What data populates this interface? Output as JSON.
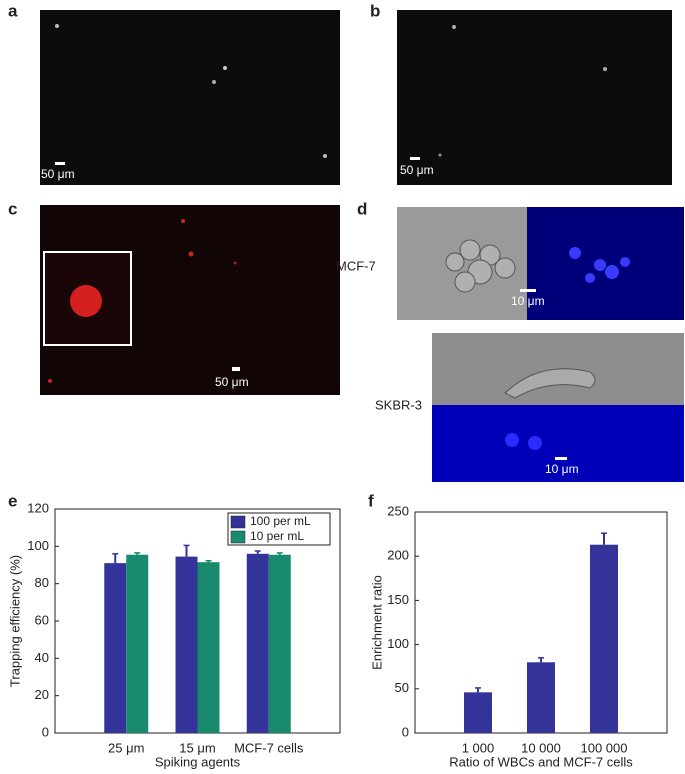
{
  "panels": {
    "a": {
      "label": "a",
      "scale": "50 μm"
    },
    "b": {
      "label": "b",
      "scale": "50 μm"
    },
    "c": {
      "label": "c",
      "scale": "50 μm"
    },
    "d": {
      "label": "d",
      "top_label": "MCF-7",
      "top_scale": "10 μm",
      "bottom_label": "SKBR-3",
      "bottom_scale": "10 μm"
    }
  },
  "chart_data": [
    {
      "type": "bar",
      "panel": "e",
      "ylabel": "Trapping efficiency (%)",
      "xlabel": "Spiking agents",
      "categories": [
        "25 μm",
        "15 μm",
        "MCF-7 cells"
      ],
      "series": [
        {
          "name": "100 per mL",
          "color": "#333399",
          "values": [
            91,
            94.5,
            96
          ],
          "errors": [
            5,
            6,
            1.5
          ]
        },
        {
          "name": "10 per mL",
          "color": "#1a8a6e",
          "values": [
            95.5,
            91.5,
            95.5
          ],
          "errors": [
            1,
            0.8,
            1
          ]
        }
      ],
      "ylim": [
        0,
        120
      ],
      "yticks": [
        0,
        20,
        40,
        60,
        80,
        100,
        120
      ],
      "legend": "upper right"
    },
    {
      "type": "bar",
      "panel": "f",
      "ylabel": "Enrichment ratio",
      "xlabel": "Ratio of WBCs and MCF-7 cells",
      "categories": [
        "1 000",
        "10 000",
        "100 000"
      ],
      "values": [
        46,
        80,
        213
      ],
      "errors": [
        5,
        5,
        13
      ],
      "color": "#333399",
      "ylim": [
        0,
        250
      ],
      "yticks": [
        0,
        50,
        100,
        150,
        200,
        250
      ]
    }
  ]
}
